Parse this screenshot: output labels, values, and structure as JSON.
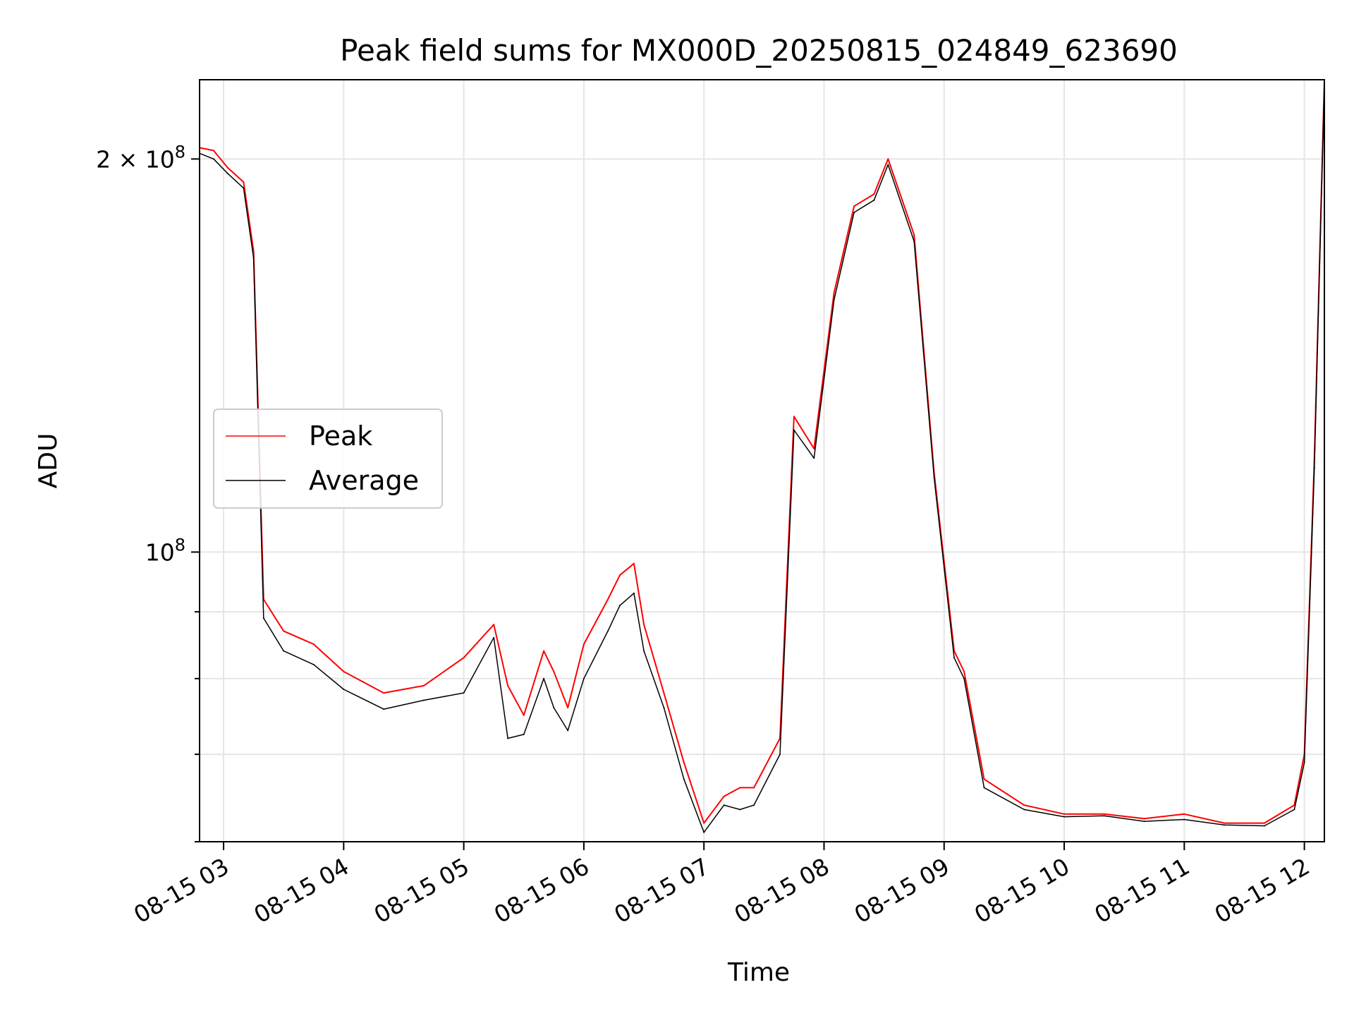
{
  "chart_data": {
    "type": "line",
    "title": "Peak field sums for MX000D_20250815_024849_623690",
    "xlabel": "Time",
    "ylabel": "ADU",
    "y_scale": "log",
    "ylim": [
      60000000,
      230000000
    ],
    "xlim": [
      "08-15 02:48",
      "08-15 12:10"
    ],
    "grid": true,
    "legend_position": "center-left",
    "x_ticks": [
      "08-15 03",
      "08-15 04",
      "08-15 05",
      "08-15 06",
      "08-15 07",
      "08-15 08",
      "08-15 09",
      "08-15 10",
      "08-15 11",
      "08-15 12"
    ],
    "y_ticks": [
      {
        "value": 100000000,
        "label": "10",
        "exp": "8"
      },
      {
        "value": 200000000,
        "label": "2 × 10",
        "exp": "8"
      }
    ],
    "y_minor_ticks": [
      60000000,
      70000000,
      80000000,
      90000000
    ],
    "series": [
      {
        "name": "Peak",
        "color": "#ff0000",
        "x": [
          "08-15 02:48",
          "08-15 02:55",
          "08-15 03:02",
          "08-15 03:10",
          "08-15 03:15",
          "08-15 03:20",
          "08-15 03:30",
          "08-15 03:45",
          "08-15 04:00",
          "08-15 04:20",
          "08-15 04:40",
          "08-15 05:00",
          "08-15 05:15",
          "08-15 05:22",
          "08-15 05:30",
          "08-15 05:40",
          "08-15 05:45",
          "08-15 05:52",
          "08-15 06:00",
          "08-15 06:12",
          "08-15 06:18",
          "08-15 06:25",
          "08-15 06:30",
          "08-15 06:40",
          "08-15 06:50",
          "08-15 07:00",
          "08-15 07:10",
          "08-15 07:18",
          "08-15 07:25",
          "08-15 07:38",
          "08-15 07:45",
          "08-15 07:55",
          "08-15 08:05",
          "08-15 08:15",
          "08-15 08:25",
          "08-15 08:32",
          "08-15 08:45",
          "08-15 08:55",
          "08-15 09:05",
          "08-15 09:10",
          "08-15 09:20",
          "08-15 09:40",
          "08-15 10:00",
          "08-15 10:20",
          "08-15 10:40",
          "08-15 11:00",
          "08-15 11:20",
          "08-15 11:40",
          "08-15 11:55",
          "08-15 12:00",
          "08-15 12:05",
          "08-15 12:10"
        ],
        "y": [
          204000000,
          203000000,
          197000000,
          192000000,
          170000000,
          92000000,
          87000000,
          85000000,
          81000000,
          78000000,
          79000000,
          83000000,
          88000000,
          79000000,
          75000000,
          84000000,
          81000000,
          76000000,
          85000000,
          92000000,
          96000000,
          98000000,
          88000000,
          78000000,
          69000000,
          62000000,
          65000000,
          66000000,
          66000000,
          72000000,
          127000000,
          120000000,
          158000000,
          184000000,
          188000000,
          200000000,
          175000000,
          115000000,
          84000000,
          81000000,
          67000000,
          64000000,
          63000000,
          63000000,
          62500000,
          63000000,
          62000000,
          62000000,
          64000000,
          70000000,
          118000000,
          230000000
        ]
      },
      {
        "name": "Average",
        "color": "#000000",
        "x": [
          "08-15 02:48",
          "08-15 02:55",
          "08-15 03:02",
          "08-15 03:10",
          "08-15 03:15",
          "08-15 03:20",
          "08-15 03:30",
          "08-15 03:45",
          "08-15 04:00",
          "08-15 04:20",
          "08-15 04:40",
          "08-15 05:00",
          "08-15 05:15",
          "08-15 05:22",
          "08-15 05:30",
          "08-15 05:40",
          "08-15 05:45",
          "08-15 05:52",
          "08-15 06:00",
          "08-15 06:12",
          "08-15 06:18",
          "08-15 06:25",
          "08-15 06:30",
          "08-15 06:40",
          "08-15 06:50",
          "08-15 07:00",
          "08-15 07:10",
          "08-15 07:18",
          "08-15 07:25",
          "08-15 07:38",
          "08-15 07:45",
          "08-15 07:55",
          "08-15 08:05",
          "08-15 08:15",
          "08-15 08:25",
          "08-15 08:32",
          "08-15 08:45",
          "08-15 08:55",
          "08-15 09:05",
          "08-15 09:10",
          "08-15 09:20",
          "08-15 09:40",
          "08-15 10:00",
          "08-15 10:20",
          "08-15 10:40",
          "08-15 11:00",
          "08-15 11:20",
          "08-15 11:40",
          "08-15 11:55",
          "08-15 12:00",
          "08-15 12:05",
          "08-15 12:10"
        ],
        "y": [
          202000000,
          200000000,
          195000000,
          190000000,
          168000000,
          89000000,
          84000000,
          82000000,
          78500000,
          75800000,
          77000000,
          78000000,
          86000000,
          72000000,
          72500000,
          80000000,
          76000000,
          73000000,
          80000000,
          87000000,
          91000000,
          93000000,
          84000000,
          76000000,
          67000000,
          61000000,
          64000000,
          63500000,
          64000000,
          70000000,
          124000000,
          118000000,
          156000000,
          182000000,
          186000000,
          198000000,
          173000000,
          114000000,
          83000000,
          80000000,
          66000000,
          63500000,
          62700000,
          62800000,
          62200000,
          62400000,
          61800000,
          61700000,
          63500000,
          69000000,
          116000000,
          229000000
        ]
      }
    ]
  }
}
